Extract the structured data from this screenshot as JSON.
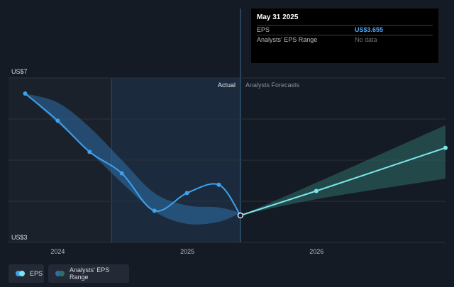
{
  "tooltip": {
    "date": "May 31 2025",
    "rows": [
      {
        "label": "EPS",
        "value": "US$3.655"
      },
      {
        "label": "Analysts' EPS Range",
        "value": "No data"
      }
    ]
  },
  "legend": {
    "eps_label": "EPS",
    "range_label": "Analysts' EPS Range"
  },
  "colors": {
    "background": "#151b24",
    "eps_line": "#3ea1f0",
    "forecast_line": "#7ae8ea",
    "actual_band": "#2d6fa8",
    "forecast_band": "#2f6e6a"
  },
  "chart_data": {
    "type": "line",
    "y_tick_labels": [
      "US$7",
      "US$3"
    ],
    "x_tick_labels": [
      "2024",
      "2025",
      "2026"
    ],
    "divider_labels": {
      "past": "Actual",
      "future": "Analysts Forecasts"
    },
    "ylim": [
      3,
      7
    ],
    "xlim": [
      "2023-08-15",
      "2026-12-31"
    ],
    "grid": true,
    "highlight_start": "2024-06-01",
    "divider_date": "2025-05-31",
    "series": [
      {
        "name": "EPS",
        "points": [
          {
            "x": "2023-10-01",
            "y": 6.62
          },
          {
            "x": "2024-01-01",
            "y": 5.96
          },
          {
            "x": "2024-03-31",
            "y": 5.2
          },
          {
            "x": "2024-06-30",
            "y": 4.68
          },
          {
            "x": "2024-09-30",
            "y": 3.77
          },
          {
            "x": "2024-12-31",
            "y": 4.2
          },
          {
            "x": "2025-03-31",
            "y": 4.4
          },
          {
            "x": "2025-05-31",
            "y": 3.655
          }
        ]
      },
      {
        "name": "EPS",
        "forecast": true,
        "points": [
          {
            "x": "2025-05-31",
            "y": 3.655
          },
          {
            "x": "2025-12-31",
            "y": 4.25
          },
          {
            "x": "2026-12-31",
            "y": 5.3
          }
        ]
      }
    ],
    "range_band": {
      "name": "Analysts' EPS Range",
      "past": [
        {
          "x": "2023-10-01",
          "lo": 6.62,
          "hi": 6.62
        },
        {
          "x": "2024-01-01",
          "lo": 5.9,
          "hi": 6.4
        },
        {
          "x": "2024-03-31",
          "lo": 5.2,
          "hi": 5.8
        },
        {
          "x": "2024-06-30",
          "lo": 4.45,
          "hi": 5.0
        },
        {
          "x": "2024-09-30",
          "lo": 3.75,
          "hi": 4.2
        },
        {
          "x": "2024-12-31",
          "lo": 3.45,
          "hi": 3.9
        },
        {
          "x": "2025-03-31",
          "lo": 3.5,
          "hi": 3.85
        },
        {
          "x": "2025-05-31",
          "lo": 3.72,
          "hi": 3.72
        }
      ],
      "future": [
        {
          "x": "2025-05-31",
          "lo": 3.655,
          "hi": 3.655
        },
        {
          "x": "2025-12-31",
          "lo": 4.05,
          "hi": 4.45
        },
        {
          "x": "2026-12-31",
          "lo": 4.55,
          "hi": 5.85
        }
      ]
    }
  }
}
